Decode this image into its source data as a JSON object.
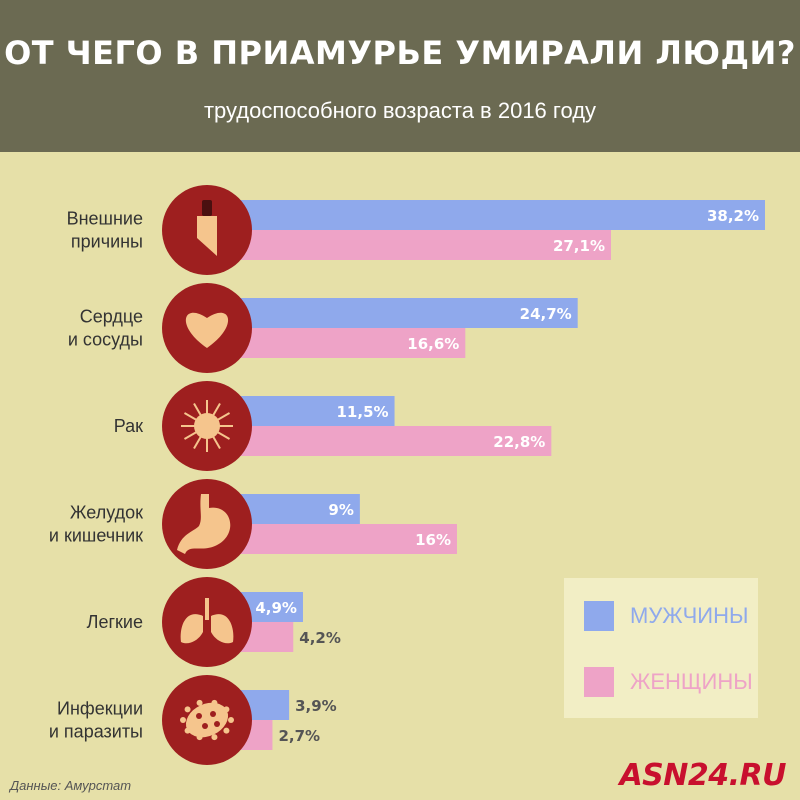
{
  "header": {
    "title": "ОТ ЧЕГО В ПРИАМУРЬЕ УМИРАЛИ ЛЮДИ?",
    "subtitle": "трудоспособного  возраста в 2016 году"
  },
  "colors": {
    "men": "#8fa9ec",
    "women": "#eea3c7",
    "icon_circle": "#9e1f1f",
    "icon_fill": "#f5c58d",
    "legend_men_text": "#8fa9ec",
    "legend_women_text": "#eea3c7"
  },
  "legend": {
    "men": "МУЖЧИНЫ",
    "women": "ЖЕНЩИНЫ"
  },
  "footer": {
    "source": "Данные: Амурстат",
    "brand": "ASN24.RU"
  },
  "chart_data": {
    "type": "bar",
    "orientation": "horizontal",
    "categories": [
      [
        "Внешние",
        "причины"
      ],
      [
        "Сердце",
        "и сосуды"
      ],
      [
        "Рак"
      ],
      [
        "Желудок",
        "и кишечник"
      ],
      [
        "Легкие"
      ],
      [
        "Инфекции",
        "и паразиты"
      ]
    ],
    "icons": [
      "knife-icon",
      "heart-icon",
      "cancer-cell-icon",
      "stomach-icon",
      "lungs-icon",
      "microbe-icon"
    ],
    "series": [
      {
        "name": "МУЖЧИНЫ",
        "values": [
          38.2,
          24.7,
          11.5,
          9,
          4.9,
          3.9
        ],
        "labels": [
          "38,2%",
          "24,7%",
          "11,5%",
          "9%",
          "4,9%",
          "3,9%"
        ]
      },
      {
        "name": "ЖЕНЩИНЫ",
        "values": [
          27.1,
          16.6,
          22.8,
          16,
          4.2,
          2.7
        ],
        "labels": [
          "27,1%",
          "16,6%",
          "22,8%",
          "16%",
          "4,2%",
          "2,7%"
        ]
      }
    ],
    "legend_position": "bottom-right",
    "grid": false
  }
}
